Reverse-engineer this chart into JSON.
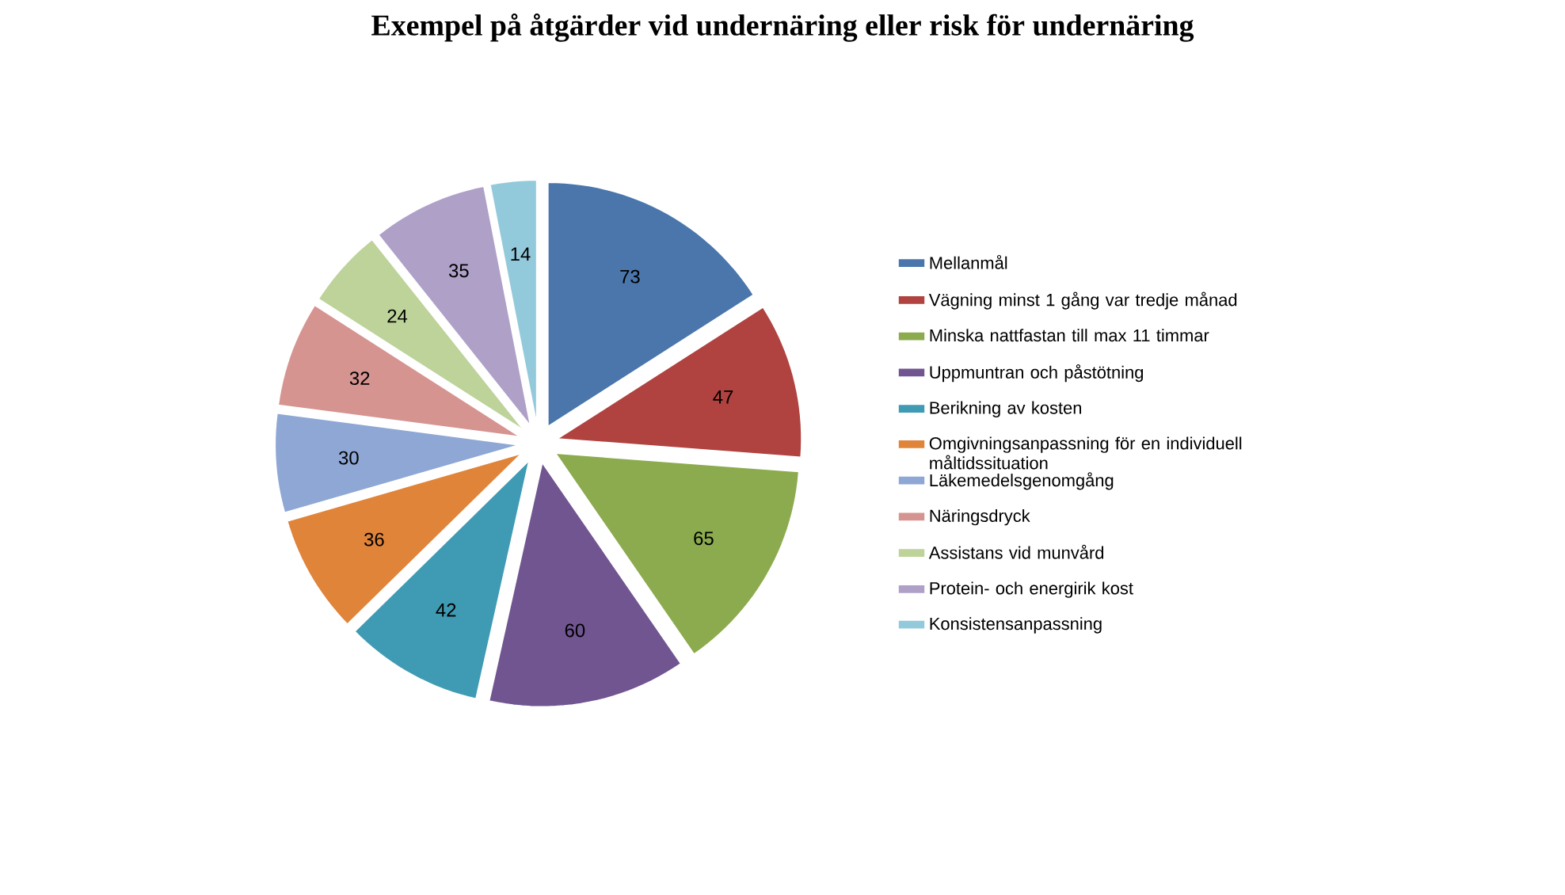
{
  "chart_data": {
    "type": "pie",
    "title": "Exempel på åtgärder vid undernäring eller risk för undernäring",
    "categories": [
      "Mellanmål",
      "Vägning minst 1 gång var tredje månad",
      "Minska nattfastan till max 11 timmar",
      "Uppmuntran och påstötning",
      "Berikning av kosten",
      "Omgivningsanpassning för en individuell måltidssituation",
      "Läkemedelsgenomgång",
      "Näringsdryck",
      "Assistans vid munvård",
      "Protein- och energirik kost",
      "Konsistensanpassning"
    ],
    "values": [
      73,
      47,
      65,
      60,
      42,
      36,
      30,
      32,
      24,
      35,
      14
    ],
    "colors": [
      "#4a76ac",
      "#b0423f",
      "#8cab4e",
      "#715591",
      "#3f9bb3",
      "#e0843a",
      "#8ea7d4",
      "#d69491",
      "#bdd39a",
      "#afa0c8",
      "#93cadb"
    ],
    "data_labels": true,
    "legend": "right"
  }
}
